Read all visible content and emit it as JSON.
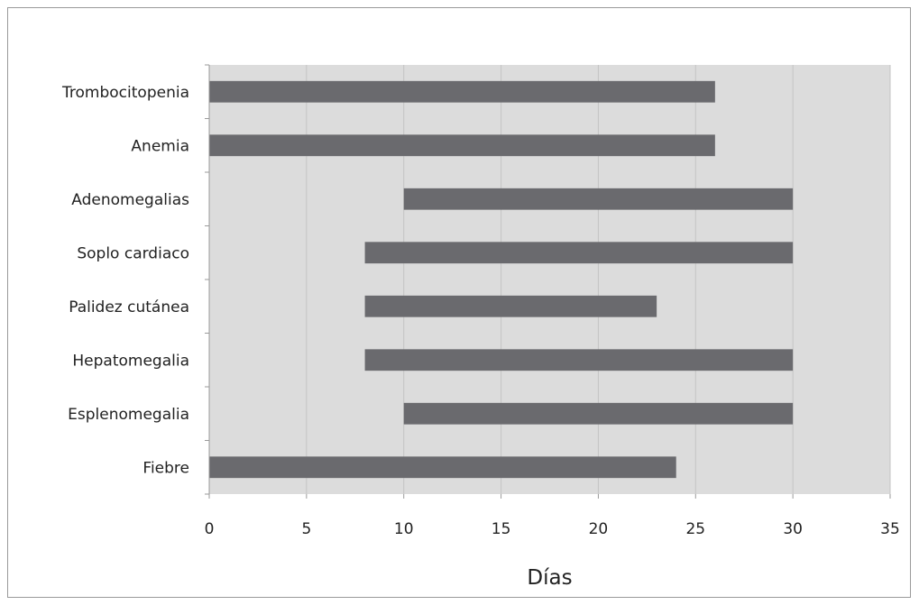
{
  "chart_data": {
    "type": "bar",
    "orientation": "horizontal",
    "style": "floating-range",
    "title": "",
    "xlabel": "Días",
    "ylabel": "",
    "xlim": [
      0,
      35
    ],
    "xticks": [
      0,
      5,
      10,
      15,
      20,
      25,
      30,
      35
    ],
    "grid": "vertical",
    "legend": "none",
    "categories": [
      "Trombocitopenia",
      "Anemia",
      "Adenomegalias",
      "Soplo cardiaco",
      "Palidez cutánea",
      "Hepatomegalia",
      "Esplenomegalia",
      "Fiebre"
    ],
    "ranges": [
      [
        0,
        26
      ],
      [
        0,
        26
      ],
      [
        10,
        30
      ],
      [
        8,
        30
      ],
      [
        8,
        23
      ],
      [
        8,
        30
      ],
      [
        10,
        30
      ],
      [
        0,
        24
      ]
    ],
    "colors": {
      "bar": "#6a6a6e",
      "plot_background": "#dcdcdc",
      "gridline": "#c4c4c4",
      "text": "#222222"
    }
  }
}
